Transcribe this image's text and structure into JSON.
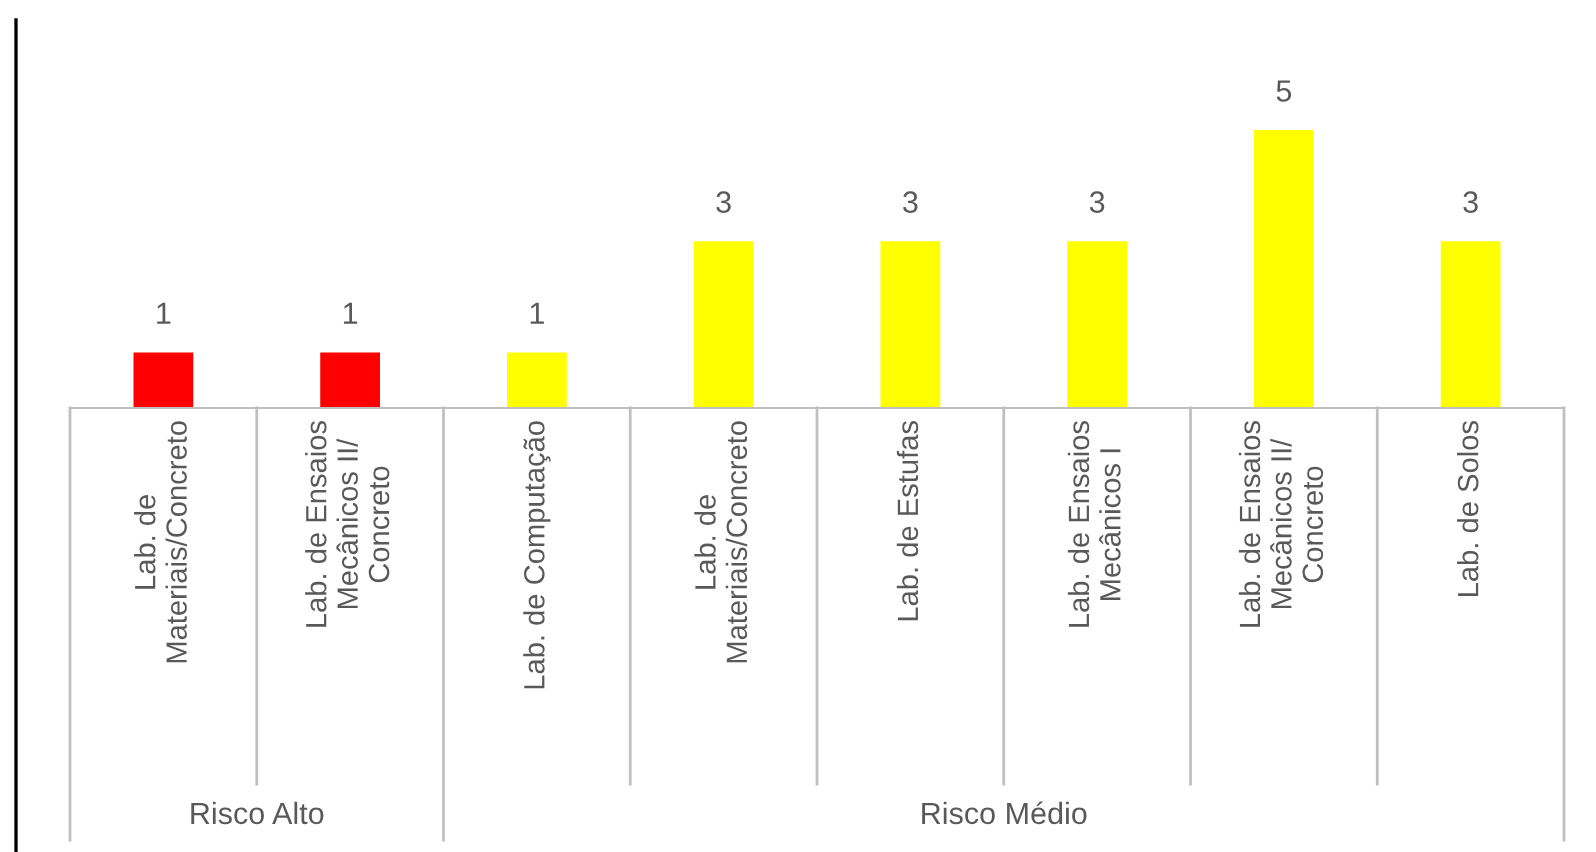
{
  "chart_data": {
    "type": "bar",
    "categories": [
      "Lab. de\nMateriais/Concreto",
      "Lab. de Ensaios\nMecânicos II/\nConcreto",
      "Lab. de Computação",
      "Lab. de\nMateriais/Concreto",
      "Lab. de Estufas",
      "Lab. de Ensaios\nMecânicos I",
      "Lab. de Ensaios\nMecânicos II/\nConcreto",
      "Lab. de Solos"
    ],
    "values": [
      1,
      1,
      1,
      3,
      3,
      3,
      5,
      3
    ],
    "colors": [
      "#ff0000",
      "#ff0000",
      "#ffff00",
      "#ffff00",
      "#ffff00",
      "#ffff00",
      "#ffff00",
      "#ffff00"
    ],
    "data_labels": true,
    "annotations": [
      "Risco Alto",
      "Risco Médio"
    ]
  }
}
